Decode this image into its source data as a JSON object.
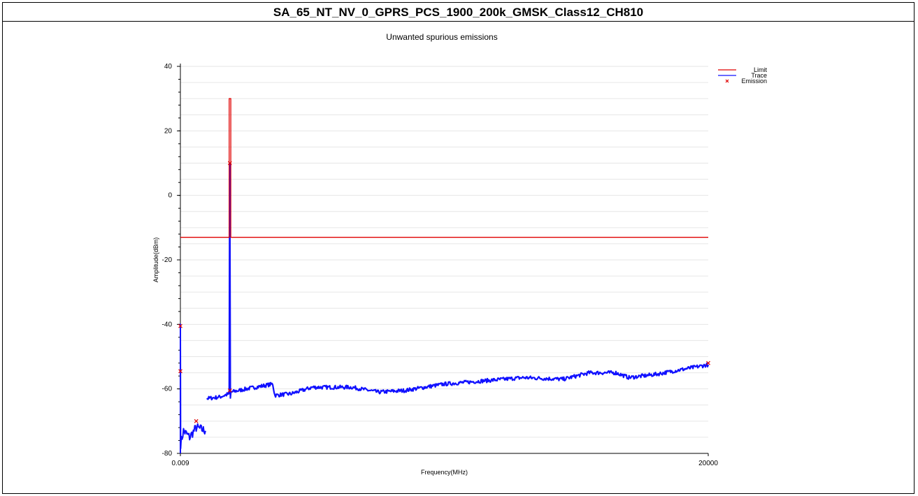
{
  "header": {
    "title": "SA_65_NT_NV_0_GPRS_PCS_1900_200k_GMSK_Class12_CH810"
  },
  "chart_data": {
    "type": "line",
    "title": "Unwanted spurious emissions",
    "xlabel": "Frequency(MHz)",
    "ylabel": "Amplitude(dBm)",
    "x_tick_labels": [
      "0.009",
      "20000"
    ],
    "y_ticks": [
      40,
      20,
      0,
      -20,
      -40,
      -60,
      -80
    ],
    "ylim": [
      -80,
      40
    ],
    "xlim": [
      0.009,
      20000
    ],
    "grid": true,
    "legend_position": "top-right",
    "legend": [
      {
        "label": "Limit",
        "color": "#e00000",
        "kind": "line"
      },
      {
        "label": "Trace",
        "color": "#1010ff",
        "kind": "line"
      },
      {
        "label": "Emission",
        "color": "#e00000",
        "kind": "marker"
      }
    ],
    "series": [
      {
        "name": "Limit",
        "color": "#e00000",
        "points": [
          [
            0.009,
            -13
          ],
          [
            1850,
            -13
          ],
          [
            1850,
            30
          ],
          [
            1910,
            30
          ],
          [
            1910,
            -13
          ],
          [
            20000,
            -13
          ]
        ]
      },
      {
        "name": "Trace",
        "color": "#1010ff",
        "segments": [
          [
            [
              0.009,
              -80
            ],
            [
              0.009,
              -40
            ],
            [
              10,
              -77
            ],
            [
              120,
              -73
            ],
            [
              350,
              -75
            ],
            [
              600,
              -72
            ],
            [
              950,
              -73
            ]
          ],
          [
            [
              1000,
              -63
            ],
            [
              1500,
              -62.5
            ],
            [
              1850,
              -61.5
            ],
            [
              1870,
              10
            ],
            [
              1895,
              -63
            ],
            [
              1915,
              -61
            ],
            [
              2500,
              -60
            ],
            [
              3500,
              -58.5
            ],
            [
              3580,
              -62
            ],
            [
              4200,
              -61.5
            ],
            [
              5000,
              -59.5
            ],
            [
              6500,
              -59.5
            ],
            [
              7500,
              -61
            ],
            [
              8500,
              -60.5
            ],
            [
              10000,
              -58.5
            ],
            [
              11500,
              -57.5
            ],
            [
              13000,
              -56.5
            ],
            [
              14500,
              -57
            ],
            [
              15500,
              -55
            ],
            [
              16500,
              -55
            ],
            [
              17000,
              -56.5
            ],
            [
              18000,
              -55.5
            ],
            [
              19000,
              -54
            ],
            [
              20000,
              -52.5
            ]
          ]
        ]
      },
      {
        "name": "Emission",
        "color": "#e00000",
        "points": [
          [
            0.009,
            -40.5
          ],
          [
            0.009,
            -54.5
          ],
          [
            600,
            -70
          ],
          [
            1875,
            10
          ],
          [
            1875,
            -60.5
          ],
          [
            20000,
            -52
          ]
        ]
      }
    ]
  }
}
